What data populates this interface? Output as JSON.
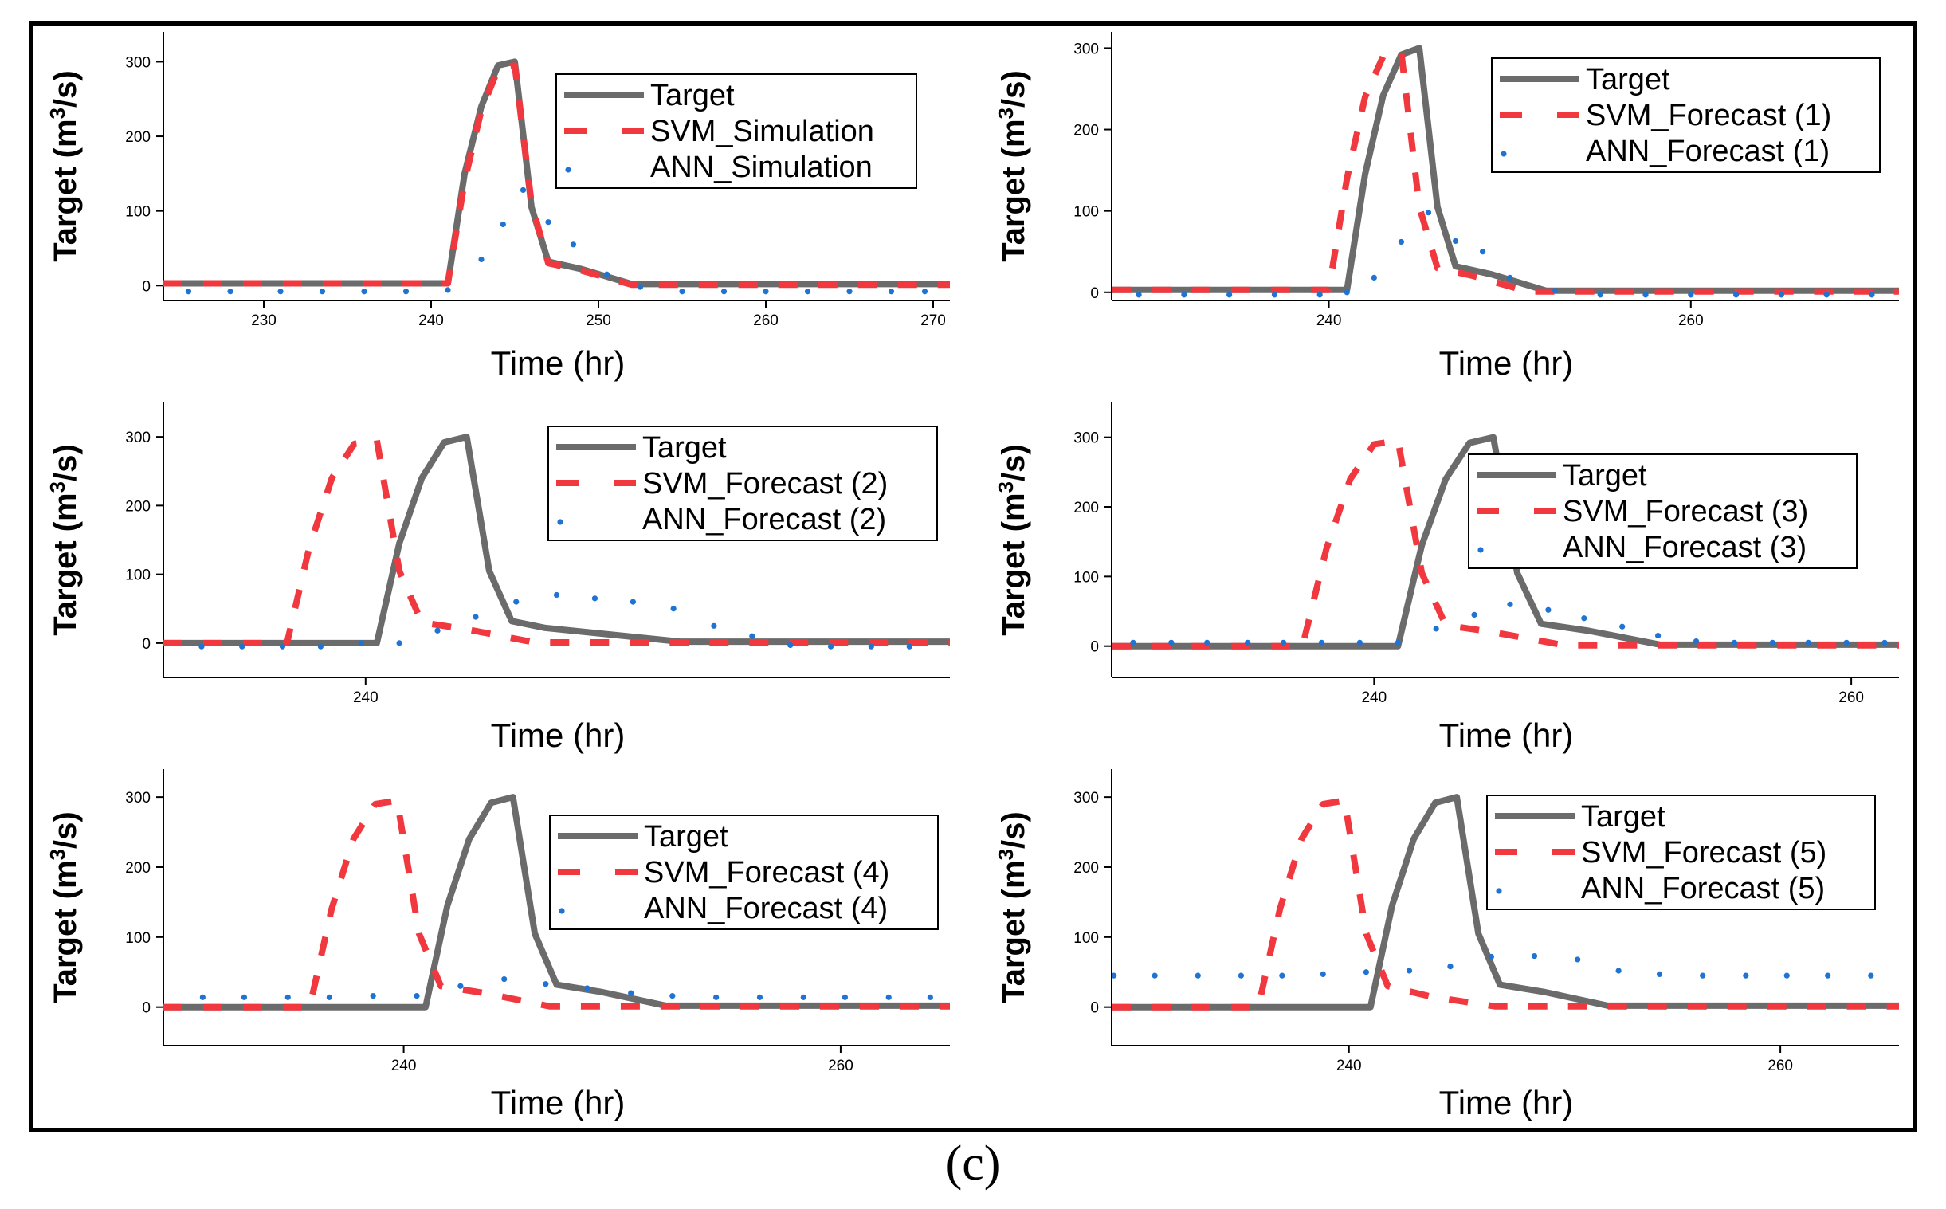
{
  "caption": "(c)",
  "colors": {
    "target": "#6b6b6b",
    "svm": "#f0383e",
    "ann": "#1f73d2"
  },
  "chart_data": [
    {
      "type": "line",
      "xlabel": "Time (hr)",
      "ylabel_parts": [
        "Target (m",
        "3",
        "/s)"
      ],
      "xlim": [
        224,
        271
      ],
      "ylim": [
        -20,
        340
      ],
      "xticks": [
        230,
        240,
        250,
        260,
        270
      ],
      "yticks": [
        0,
        100,
        200,
        300
      ],
      "legend_position": "top-right",
      "series": [
        {
          "key": "target",
          "name": "Target",
          "x": [
            224,
            241,
            242,
            243,
            244,
            245,
            246,
            247,
            249,
            252,
            271
          ],
          "y": [
            3,
            3,
            150,
            240,
            295,
            300,
            105,
            32,
            22,
            2,
            2
          ]
        },
        {
          "key": "svm",
          "name": "SVM_Simulation",
          "x": [
            224,
            241,
            242,
            243,
            244,
            245,
            246,
            247,
            249,
            252,
            271
          ],
          "y": [
            3,
            3,
            140,
            235,
            290,
            295,
            110,
            30,
            20,
            1,
            1
          ]
        },
        {
          "key": "ann",
          "name": "ANN_Simulation",
          "x": [
            225.5,
            228,
            231,
            233.5,
            236,
            238.5,
            241,
            243,
            244.3,
            245.5,
            247,
            248.5,
            250.5,
            252.5,
            255,
            257.5,
            260,
            262.5,
            265,
            267.5,
            269.5
          ],
          "y": [
            -8,
            -8,
            -8,
            -8,
            -8,
            -8,
            -6,
            35,
            82,
            128,
            85,
            55,
            15,
            -2,
            -8,
            -8,
            -8,
            -8,
            -8,
            -8,
            -8
          ]
        }
      ]
    },
    {
      "type": "line",
      "xlabel": "Time (hr)",
      "ylabel_parts": [
        "Target (m",
        "3",
        "/s)"
      ],
      "xlim": [
        228,
        271.5
      ],
      "ylim": [
        -10,
        320
      ],
      "xticks": [
        240,
        260
      ],
      "yticks": [
        0,
        100,
        200,
        300
      ],
      "legend_position": "top-right",
      "series": [
        {
          "key": "target",
          "name": "Target",
          "x": [
            228,
            241,
            242,
            243,
            244,
            245,
            246,
            247,
            249,
            252,
            271.5
          ],
          "y": [
            3,
            3,
            145,
            242,
            292,
            300,
            105,
            32,
            22,
            2,
            2
          ]
        },
        {
          "key": "svm",
          "name": "SVM_Forecast (1)",
          "x": [
            228,
            240,
            241,
            242,
            243,
            244,
            245,
            246,
            248,
            251,
            271.5
          ],
          "y": [
            3,
            3,
            140,
            240,
            290,
            295,
            105,
            30,
            20,
            1,
            1
          ]
        },
        {
          "key": "ann",
          "name": "ANN_Forecast (1)",
          "x": [
            229.5,
            232,
            234.5,
            237,
            239.5,
            241,
            242.5,
            244,
            245.5,
            247,
            248.5,
            250,
            252.5,
            255,
            257.5,
            260,
            262.5,
            265,
            267.5,
            270
          ],
          "y": [
            -3,
            -3,
            -3,
            -3,
            -3,
            0,
            18,
            62,
            98,
            63,
            50,
            18,
            2,
            -3,
            -3,
            -3,
            -3,
            -3,
            -3,
            -3
          ]
        }
      ]
    },
    {
      "type": "line",
      "xlabel": "Time (hr)",
      "ylabel_parts": [
        "Target (m",
        "3",
        "/s)"
      ],
      "xlim": [
        231,
        266
      ],
      "ylim": [
        -50,
        350
      ],
      "xticks": [
        240
      ],
      "yticks": [
        0,
        100,
        200,
        300
      ],
      "legend_position": "top-right",
      "series": [
        {
          "key": "target",
          "name": "Target",
          "x": [
            231,
            240.5,
            241.5,
            242.5,
            243.5,
            244.5,
            245.5,
            246.5,
            248,
            254,
            266
          ],
          "y": [
            0,
            0,
            145,
            240,
            292,
            300,
            105,
            32,
            22,
            2,
            2
          ]
        },
        {
          "key": "svm",
          "name": "SVM_Forecast (2)",
          "x": [
            231,
            236.5,
            237.5,
            238.5,
            239.5,
            240.5,
            241.5,
            242.5,
            244.5,
            247.5,
            266
          ],
          "y": [
            0,
            0,
            140,
            240,
            290,
            295,
            105,
            30,
            20,
            1,
            1
          ]
        },
        {
          "key": "ann",
          "name": "ANN_Forecast (2)",
          "x": [
            232.7,
            234.5,
            236.3,
            238,
            239.8,
            241.5,
            243.2,
            244.9,
            246.7,
            248.5,
            250.2,
            251.9,
            253.7,
            255.5,
            257.2,
            258.9,
            260.7,
            262.5,
            264.2
          ],
          "y": [
            -5,
            -5,
            -5,
            -5,
            0,
            0,
            18,
            38,
            60,
            70,
            65,
            60,
            50,
            25,
            10,
            -3,
            -5,
            -5,
            -5
          ]
        }
      ]
    },
    {
      "type": "line",
      "xlabel": "Time (hr)",
      "ylabel_parts": [
        "Target (m",
        "3",
        "/s)"
      ],
      "xlim": [
        229,
        262
      ],
      "ylim": [
        -45,
        350
      ],
      "xticks": [
        240,
        260
      ],
      "yticks": [
        0,
        100,
        200,
        300
      ],
      "legend_position": "top-right",
      "series": [
        {
          "key": "target",
          "name": "Target",
          "x": [
            229,
            241,
            242,
            243,
            244,
            245,
            246,
            247,
            249,
            252,
            262
          ],
          "y": [
            0,
            0,
            145,
            240,
            292,
            300,
            105,
            32,
            22,
            2,
            2
          ]
        },
        {
          "key": "svm",
          "name": "SVM_Forecast (3)",
          "x": [
            229,
            237,
            238,
            239,
            240,
            241,
            242,
            243,
            245,
            248,
            262
          ],
          "y": [
            0,
            0,
            140,
            240,
            290,
            295,
            105,
            30,
            20,
            1,
            1
          ]
        },
        {
          "key": "ann",
          "name": "ANN_Forecast (3)",
          "x": [
            229.9,
            231.5,
            233,
            234.7,
            236.2,
            237.8,
            239.4,
            241,
            242.6,
            244.2,
            245.7,
            247.3,
            248.8,
            250.4,
            251.9,
            253.5,
            255.1,
            256.7,
            258.2,
            259.8,
            261.4
          ],
          "y": [
            5,
            5,
            5,
            5,
            5,
            5,
            5,
            5,
            25,
            45,
            60,
            52,
            40,
            28,
            15,
            7,
            5,
            5,
            5,
            5,
            5
          ]
        }
      ]
    },
    {
      "type": "line",
      "xlabel": "Time (hr)",
      "ylabel_parts": [
        "Target (m",
        "3",
        "/s)"
      ],
      "xlim": [
        229,
        265
      ],
      "ylim": [
        -55,
        340
      ],
      "xticks": [
        240,
        260
      ],
      "yticks": [
        0,
        100,
        200,
        300
      ],
      "legend_position": "top-right",
      "series": [
        {
          "key": "target",
          "name": "Target",
          "x": [
            229,
            241,
            242,
            243,
            244,
            245,
            246,
            247,
            249,
            252,
            265
          ],
          "y": [
            0,
            0,
            145,
            240,
            292,
            300,
            105,
            32,
            22,
            2,
            2
          ]
        },
        {
          "key": "svm",
          "name": "SVM_Forecast (4)",
          "x": [
            229,
            235.7,
            236.7,
            237.7,
            238.7,
            239.7,
            240.7,
            241.7,
            243.7,
            246.7,
            265
          ],
          "y": [
            0,
            0,
            140,
            240,
            290,
            295,
            105,
            30,
            20,
            1,
            1
          ]
        },
        {
          "key": "ann",
          "name": "ANN_Forecast (4)",
          "x": [
            230.8,
            232.7,
            234.7,
            236.6,
            238.6,
            240.6,
            242.6,
            244.6,
            246.5,
            248.4,
            250.4,
            252.3,
            254.3,
            256.3,
            258.3,
            260.2,
            262.2,
            264.1
          ],
          "y": [
            14,
            14,
            14,
            14,
            16,
            16,
            30,
            40,
            33,
            27,
            20,
            16,
            14,
            14,
            14,
            14,
            14,
            14
          ]
        }
      ]
    },
    {
      "type": "line",
      "xlabel": "Time (hr)",
      "ylabel_parts": [
        "Target (m",
        "3",
        "/s)"
      ],
      "xlim": [
        229,
        265.5
      ],
      "ylim": [
        -55,
        340
      ],
      "xticks": [
        240,
        260
      ],
      "yticks": [
        0,
        100,
        200,
        300
      ],
      "legend_position": "top-right",
      "series": [
        {
          "key": "target",
          "name": "Target",
          "x": [
            229,
            241,
            242,
            243,
            244,
            245,
            246,
            247,
            249,
            252,
            265.5
          ],
          "y": [
            0,
            0,
            145,
            240,
            292,
            300,
            105,
            32,
            22,
            2,
            2
          ]
        },
        {
          "key": "svm",
          "name": "SVM_Forecast (5)",
          "x": [
            229,
            235.8,
            236.8,
            237.8,
            238.8,
            239.8,
            240.8,
            241.8,
            243.8,
            246.8,
            265.5
          ],
          "y": [
            0,
            0,
            140,
            240,
            290,
            295,
            105,
            30,
            15,
            1,
            1
          ]
        },
        {
          "key": "ann",
          "name": "ANN_Forecast (5)",
          "x": [
            229.1,
            231,
            233,
            235,
            236.9,
            238.8,
            240.8,
            242.8,
            244.7,
            246.6,
            248.6,
            250.6,
            252.5,
            254.4,
            256.4,
            258.4,
            260.3,
            262.2,
            264.2
          ],
          "y": [
            45,
            45,
            45,
            45,
            45,
            47,
            50,
            52,
            58,
            72,
            73,
            68,
            52,
            47,
            45,
            45,
            45,
            45,
            45
          ]
        }
      ]
    }
  ]
}
